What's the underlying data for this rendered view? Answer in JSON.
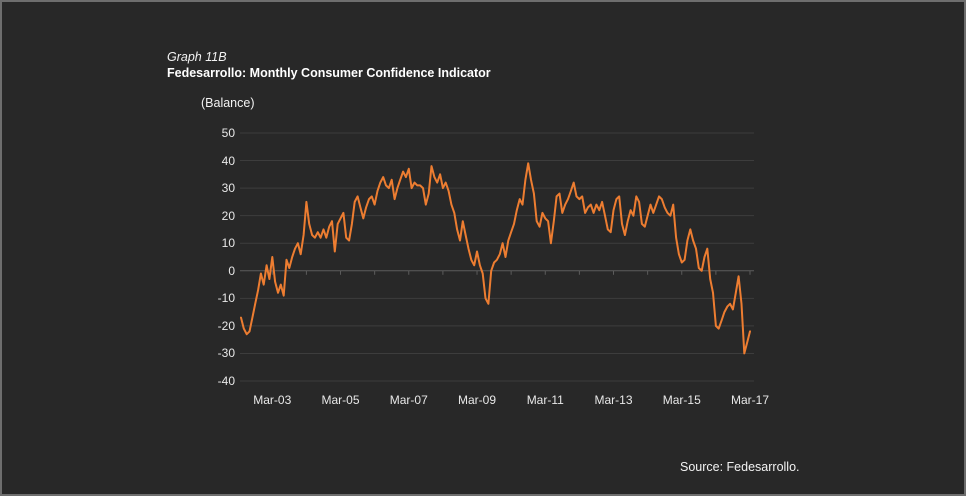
{
  "window": {
    "bg_color": "#282828",
    "border_color": "#6e6e6e"
  },
  "header": {
    "graph_label": "Graph 11B",
    "title": "Fedesarrollo: Monthly Consumer Confidence Indicator",
    "unit_label": "(Balance)"
  },
  "footer": {
    "source": "Source: Fedesarrollo."
  },
  "chart_data": {
    "type": "line",
    "title": "Fedesarrollo: Monthly Consumer Confidence Indicator",
    "ylabel": "(Balance)",
    "xlabel": "",
    "ylim": [
      -40,
      50
    ],
    "yticks": [
      50,
      40,
      30,
      20,
      10,
      0,
      -10,
      -20,
      -30,
      -40
    ],
    "grid": "horizontal-only",
    "legend": "none",
    "line_color": "#ED7D31",
    "gridline_color": "#3d3d3d",
    "zero_axis_color": "#5c5c5c",
    "frequency": "monthly",
    "x_first_month": "Apr-02",
    "x_last_month": "Mar-17",
    "xtick_labels": [
      "Mar-03",
      "Mar-05",
      "Mar-07",
      "Mar-09",
      "Mar-11",
      "Mar-13",
      "Mar-15",
      "Mar-17"
    ],
    "xtick_month_indices": [
      11,
      35,
      59,
      83,
      107,
      131,
      155,
      179
    ],
    "year_tick_step_months": 12,
    "series": [
      {
        "name": "Monthly Consumer Confidence Indicator",
        "values": [
          -17,
          -21,
          -23,
          -22,
          -17,
          -12,
          -7,
          -1,
          -5,
          2,
          -3,
          5,
          -4,
          -8,
          -5,
          -9,
          4,
          1,
          5,
          8,
          10,
          6,
          13,
          25,
          17,
          13,
          12,
          14,
          12,
          15,
          12,
          16,
          18,
          7,
          17,
          19,
          21,
          12,
          11,
          17,
          25,
          27,
          23,
          19,
          23,
          26,
          27,
          24,
          29,
          32,
          34,
          31,
          30,
          33,
          26,
          30,
          33,
          36,
          34,
          37,
          30,
          32,
          31,
          31,
          30,
          24,
          28,
          38,
          34,
          32,
          35,
          30,
          32,
          29,
          24,
          21,
          15,
          11,
          18,
          13,
          8,
          4,
          2,
          7,
          2,
          -1,
          -10,
          -12,
          0,
          3,
          4,
          6,
          10,
          5,
          11,
          14,
          17,
          22,
          26,
          24,
          33,
          39,
          33,
          28,
          18,
          16,
          21,
          19,
          18,
          10,
          18,
          27,
          28,
          21,
          24,
          26,
          29,
          32,
          27,
          26,
          27,
          21,
          23,
          24,
          21,
          24,
          22,
          25,
          20,
          15,
          14,
          22,
          26,
          27,
          17,
          13,
          18,
          22,
          20,
          27,
          25,
          17,
          16,
          20,
          24,
          21,
          24,
          27,
          26,
          23,
          21,
          20,
          24,
          12,
          6,
          3,
          4,
          11,
          15,
          11,
          8,
          1,
          0,
          5,
          8,
          -3,
          -8,
          -20,
          -21,
          -18,
          -15,
          -13,
          -12,
          -14,
          -8,
          -2,
          -12,
          -30,
          -26,
          -22
        ]
      }
    ]
  }
}
